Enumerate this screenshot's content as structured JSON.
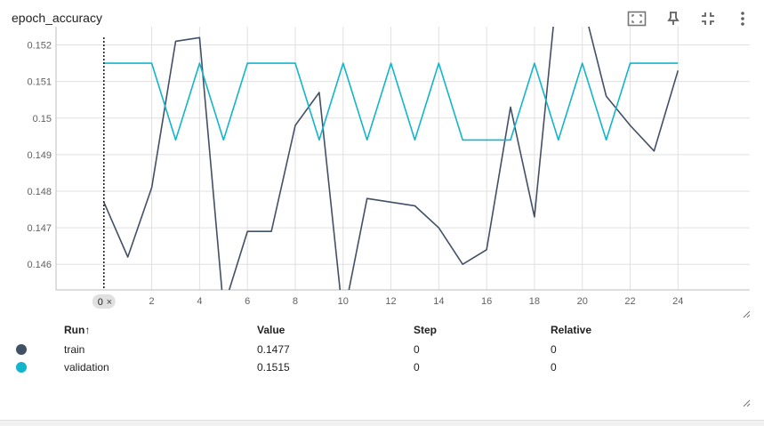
{
  "card": {
    "title": "epoch_accuracy"
  },
  "toolbar": {
    "icons": [
      "fit-to-data-icon",
      "pin-icon",
      "collapse-icon",
      "more-vert-icon"
    ]
  },
  "cursor": {
    "step_label": "0",
    "close_glyph": "×"
  },
  "chart_data": {
    "type": "line",
    "xlabel": "",
    "ylabel": "",
    "xlim": [
      -2,
      27
    ],
    "ylim": [
      0.1453,
      0.1525
    ],
    "x_ticks": [
      2,
      4,
      6,
      8,
      10,
      12,
      14,
      16,
      18,
      20,
      22,
      24
    ],
    "y_ticks": [
      0.146,
      0.147,
      0.148,
      0.149,
      0.15,
      0.151,
      0.152
    ],
    "y_tick_labels": [
      "0.146",
      "0.147",
      "0.148",
      "0.149",
      "0.15",
      "0.151",
      "0.152"
    ],
    "grid": true,
    "series": [
      {
        "name": "train",
        "color": "#425066",
        "x": [
          0,
          1,
          2,
          3,
          4,
          5,
          6,
          7,
          8,
          9,
          10,
          11,
          12,
          13,
          14,
          15,
          16,
          17,
          18,
          19,
          20,
          21,
          22,
          23,
          24
        ],
        "y": [
          0.1477,
          0.1462,
          0.1481,
          0.1521,
          0.1522,
          0.1448,
          0.1469,
          0.1469,
          0.1498,
          0.1507,
          0.1445,
          0.1478,
          0.1477,
          0.1476,
          0.147,
          0.146,
          0.1464,
          0.1503,
          0.1473,
          0.1539,
          0.1532,
          0.1506,
          0.1498,
          0.1491,
          0.1513
        ]
      },
      {
        "name": "validation",
        "color": "#12b5cb",
        "x": [
          0,
          1,
          2,
          3,
          4,
          5,
          6,
          7,
          8,
          9,
          10,
          11,
          12,
          13,
          14,
          15,
          16,
          17,
          18,
          19,
          20,
          21,
          22,
          23,
          24
        ],
        "y": [
          0.1515,
          0.1515,
          0.1515,
          0.1494,
          0.1515,
          0.1494,
          0.1515,
          0.1515,
          0.1515,
          0.1494,
          0.1515,
          0.1494,
          0.1515,
          0.1494,
          0.1515,
          0.1494,
          0.1494,
          0.1494,
          0.1515,
          0.1494,
          0.1515,
          0.1494,
          0.1515,
          0.1515,
          0.1515
        ]
      }
    ]
  },
  "table": {
    "headers": {
      "run": "Run",
      "sort_glyph": "↑",
      "value": "Value",
      "step": "Step",
      "relative": "Relative"
    },
    "rows": [
      {
        "run": "train",
        "value": "0.1477",
        "step": "0",
        "relative": "0",
        "color": "#425066"
      },
      {
        "run": "validation",
        "value": "0.1515",
        "step": "0",
        "relative": "0",
        "color": "#12b5cb"
      }
    ]
  }
}
